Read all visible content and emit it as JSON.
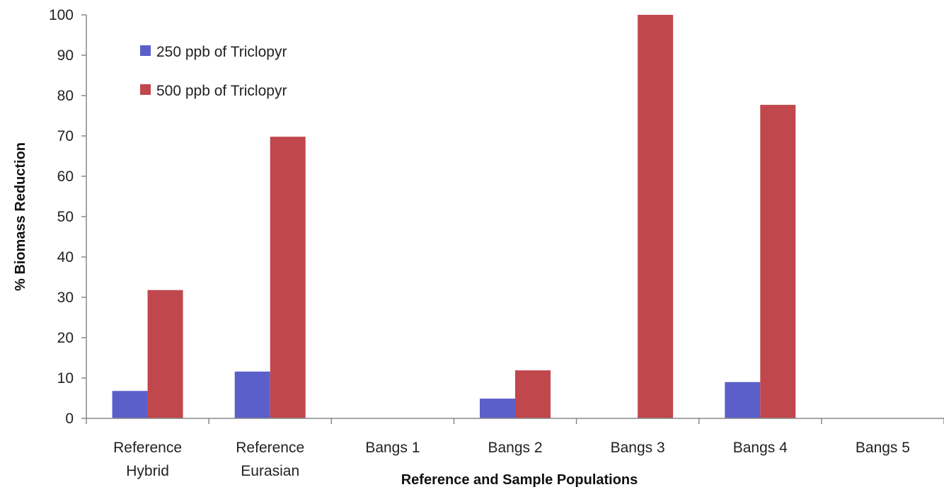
{
  "chart_data": {
    "type": "bar",
    "title": "",
    "xlabel": "Reference and Sample Populations",
    "ylabel": "% Biomass Reduction",
    "ylim": [
      0,
      100
    ],
    "yticks": [
      0,
      10,
      20,
      30,
      40,
      50,
      60,
      70,
      80,
      90,
      100
    ],
    "grid": false,
    "legend": "top-left",
    "categories": [
      [
        "Reference",
        "Hybrid"
      ],
      [
        "Reference",
        "Eurasian"
      ],
      [
        "Bangs 1"
      ],
      [
        "Bangs 2"
      ],
      [
        "Bangs 3"
      ],
      [
        "Bangs 4"
      ],
      [
        "Bangs 5"
      ]
    ],
    "series": [
      {
        "name": "250 ppb of Triclopyr",
        "color": "#5b5fc9",
        "values": [
          6.8,
          11.6,
          0,
          4.9,
          0,
          9.0,
          0
        ]
      },
      {
        "name": "500 ppb of Triclopyr",
        "color": "#c0474c",
        "values": [
          31.8,
          69.8,
          0,
          11.9,
          100,
          77.7,
          0
        ]
      }
    ]
  }
}
